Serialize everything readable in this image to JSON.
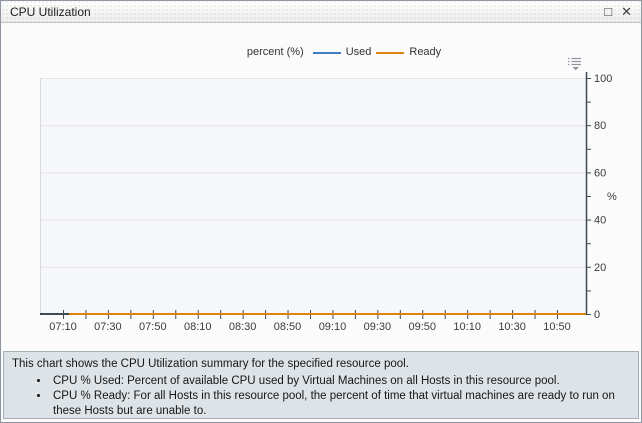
{
  "window": {
    "title": "CPU Utilization",
    "maximize_glyph": "□",
    "close_glyph": "✕"
  },
  "legend": {
    "axis_label": "percent (%)",
    "series": [
      {
        "label": "Used",
        "color": "#3f7cc4"
      },
      {
        "label": "Ready",
        "color": "#e0820f"
      }
    ]
  },
  "chart_data": {
    "type": "line",
    "title": "CPU Utilization",
    "xlabel": "",
    "ylabel": "%",
    "ylim": [
      0,
      100
    ],
    "y_major_ticks": [
      0,
      20,
      40,
      60,
      80,
      100
    ],
    "y_minor_step": 10,
    "x_tick_labels": [
      "07:10",
      "07:30",
      "07:50",
      "08:10",
      "08:30",
      "08:50",
      "09:10",
      "09:30",
      "09:50",
      "10:10",
      "10:30",
      "10:50"
    ],
    "grid": "horizontal",
    "legend_position": "top",
    "series": [
      {
        "name": "Used",
        "color": "#3f7cc4",
        "values": [
          0,
          0,
          0,
          0,
          0,
          0,
          0,
          0,
          0,
          0,
          0,
          0
        ]
      },
      {
        "name": "Ready",
        "color": "#e0820f",
        "values": [
          0,
          0,
          0,
          0,
          0,
          0,
          0,
          0,
          0,
          0,
          0,
          0
        ]
      }
    ]
  },
  "info": {
    "intro": "This chart shows the CPU Utilization summary for the specified resource pool.",
    "bullets": [
      "CPU % Used: Percent of available CPU used by Virtual Machines on all Hosts in this resource pool.",
      "CPU % Ready: For all Hosts in this resource pool, the percent of time that virtual machines are ready to run on these Hosts but are unable to."
    ]
  }
}
